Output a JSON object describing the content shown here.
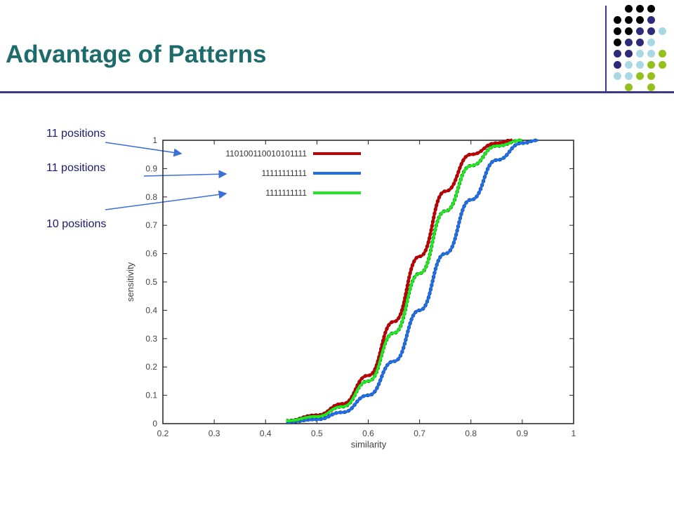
{
  "slide": {
    "title": "Advantage of Patterns",
    "palette": [
      "#000000",
      "#2e2a7a",
      "#a8d8e0",
      "#94c11f"
    ]
  },
  "annotations": [
    {
      "label": "11 positions",
      "target": "110100110010101111"
    },
    {
      "label": "11 positions",
      "target": "11111111111 (blue)"
    },
    {
      "label": "10 positions",
      "target": "1111111111 (green)"
    }
  ],
  "chart_data": {
    "type": "line",
    "xlabel": "similarity",
    "ylabel": "sensitivity",
    "xlim": [
      0.2,
      1.0
    ],
    "ylim": [
      0,
      1
    ],
    "xticks": [
      "0.2",
      "0.3",
      "0.4",
      "0.5",
      "0.6",
      "0.7",
      "0.8",
      "0.9",
      "1"
    ],
    "yticks": [
      "0",
      "0.1",
      "0.2",
      "0.3",
      "0.4",
      "0.5",
      "0.6",
      "0.7",
      "0.8",
      "0.9",
      "1"
    ],
    "legend_position": "top-left",
    "series": [
      {
        "name": "110100110010101111",
        "color": "#c00000",
        "x": [
          0.44,
          0.5,
          0.55,
          0.6,
          0.65,
          0.7,
          0.75,
          0.8,
          0.85,
          0.88
        ],
        "y": [
          0.01,
          0.03,
          0.07,
          0.17,
          0.36,
          0.59,
          0.82,
          0.95,
          0.99,
          1.0
        ]
      },
      {
        "name": "11111111111",
        "color": "#1e6fe6",
        "x": [
          0.44,
          0.5,
          0.55,
          0.6,
          0.65,
          0.7,
          0.75,
          0.8,
          0.85,
          0.9,
          0.93
        ],
        "y": [
          0.005,
          0.015,
          0.04,
          0.1,
          0.22,
          0.4,
          0.6,
          0.79,
          0.93,
          0.99,
          1.0
        ]
      },
      {
        "name": "1111111111",
        "color": "#22e622",
        "x": [
          0.44,
          0.5,
          0.55,
          0.6,
          0.65,
          0.7,
          0.75,
          0.8,
          0.85,
          0.9
        ],
        "y": [
          0.01,
          0.025,
          0.06,
          0.15,
          0.32,
          0.53,
          0.75,
          0.91,
          0.98,
          1.0
        ]
      }
    ]
  }
}
